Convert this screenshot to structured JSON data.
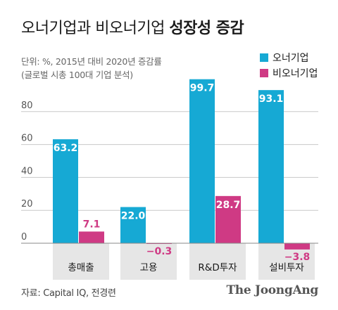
{
  "title_normal": "오너기업과 비오너기업",
  "title_bold": "성장성 증감",
  "note_line1": "단위: %, 2015년 대비 2020년 증감률",
  "note_line2": "(글로벌 시총 100대 기업 분석)",
  "source": "자료: Capital IQ, 전경련",
  "brand": "The JoongAng",
  "colors": {
    "owner": "#16a9d4",
    "non_owner": "#cf3a84",
    "category_bg": "#e6e6e6",
    "grid": "#c8c8c8"
  },
  "chart_data": {
    "type": "bar",
    "title": "오너기업과 비오너기업 성장성 증감",
    "categories": [
      "총매출",
      "고용",
      "R&D투자",
      "설비투자"
    ],
    "series": [
      {
        "name": "오너기업",
        "values": [
          63.2,
          22.0,
          99.7,
          93.1
        ]
      },
      {
        "name": "비오너기업",
        "values": [
          7.1,
          -0.3,
          28.7,
          -3.8
        ]
      }
    ],
    "value_labels": [
      [
        "63.2",
        "22.0",
        "99.7",
        "93.1"
      ],
      [
        "7.1",
        "−0.3",
        "28.7",
        "−3.8"
      ]
    ],
    "y_ticks": [
      "0",
      "20",
      "40",
      "60",
      "80"
    ],
    "ylim": [
      0,
      100
    ],
    "grid": true,
    "legend_position": "top-right"
  }
}
